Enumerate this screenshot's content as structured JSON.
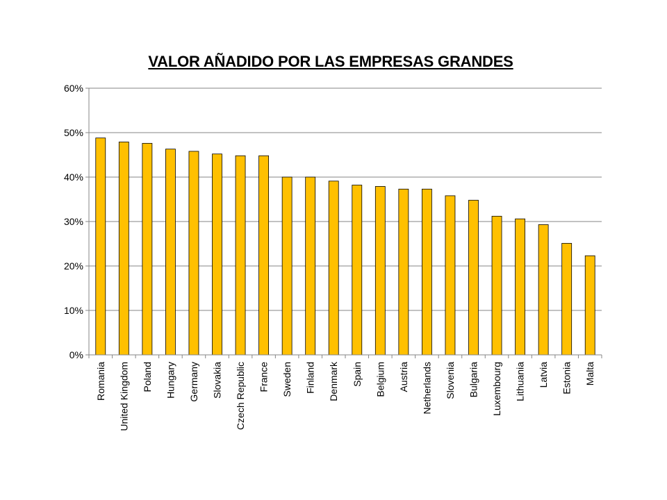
{
  "chart_data": {
    "type": "bar",
    "title": "VALOR AÑADIDO POR LAS EMPRESAS GRANDES",
    "categories": [
      "Romania",
      "United Kingdom",
      "Poland",
      "Hungary",
      "Germany",
      "Slovakia",
      "Czech Republic",
      "France",
      "Sweden",
      "Finland",
      "Denmark",
      "Spain",
      "Belgium",
      "Austria",
      "Netherlands",
      "Slovenia",
      "Bulgaria",
      "Luxembourg",
      "Lithuania",
      "Latvia",
      "Estonia",
      "Malta"
    ],
    "values": [
      48.8,
      47.9,
      47.6,
      46.3,
      45.8,
      45.2,
      44.8,
      44.8,
      40.0,
      40.0,
      39.1,
      38.2,
      37.9,
      37.3,
      37.3,
      35.8,
      34.8,
      31.2,
      30.6,
      29.3,
      25.1,
      22.3
    ],
    "ylim": [
      0,
      60
    ],
    "yticks": [
      "0%",
      "10%",
      "20%",
      "30%",
      "40%",
      "50%",
      "60%"
    ],
    "grid": true,
    "legend": "none",
    "bar_color": "#FFC000",
    "bar_edge_color": "#000000",
    "grid_color": "#868686"
  }
}
